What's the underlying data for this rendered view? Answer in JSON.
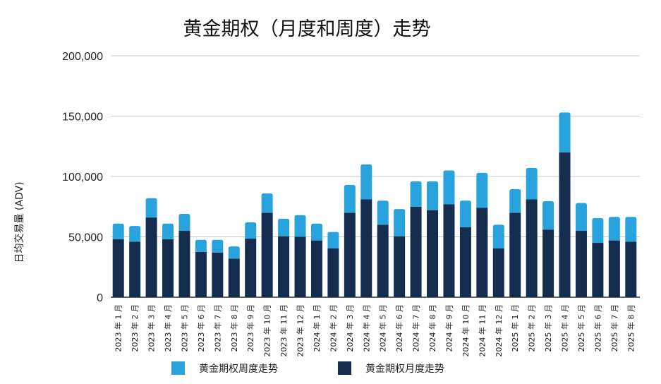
{
  "chart_data": {
    "type": "bar",
    "stacked": true,
    "title": "黄金期权（月度和周度）走势",
    "xlabel": "",
    "ylabel": "日均交易量 (ADV)",
    "ylim": [
      0,
      200000
    ],
    "yticks": [
      "0",
      "50,000",
      "100,000",
      "150,000",
      "200,000"
    ],
    "ytick_values": [
      0,
      50000,
      100000,
      150000,
      200000
    ],
    "grid": true,
    "legend": "bottom",
    "categories": [
      "2023 年 1 月",
      "2023 年 2 月",
      "2023 年 3 月",
      "2023 年 4 月",
      "2023 年 5 月",
      "2023 年 6 月",
      "2023 年 7 月",
      "2023 年 8 月",
      "2023 年 9 月",
      "2023 年 10 月",
      "2023 年 11 月",
      "2023 年 12 月",
      "2024 年 1 月",
      "2024 年 2 月",
      "2024 年 3 月",
      "2024 年 4 月",
      "2024 年 5 月",
      "2024 年 6 月",
      "2024 年 7 月",
      "2024 年 8 月",
      "2024 年 9 月",
      "2024 年 10 月",
      "2024 年 11 月",
      "2024 年 12 月",
      "2025 年 1 月",
      "2025 年 2 月",
      "2025 年 3 月",
      "2025 年 4 月",
      "2025 年 5 月",
      "2025 年 6 月",
      "2025 年 7 月",
      "2025 年 8 月"
    ],
    "series": [
      {
        "name": "黄金期权月度走势",
        "color": "#142C4E",
        "values": [
          48000,
          46000,
          66000,
          48000,
          55000,
          37500,
          37000,
          32000,
          48500,
          70000,
          50500,
          50000,
          47000,
          40500,
          70000,
          81000,
          60000,
          50500,
          75000,
          72000,
          77000,
          58000,
          74000,
          40500,
          70000,
          81000,
          56000,
          120000,
          55000,
          45000,
          47000,
          46000
        ]
      },
      {
        "name": "黄金期权周度走势",
        "color": "#29A3DD",
        "values": [
          13000,
          13000,
          16000,
          13000,
          14000,
          10000,
          10500,
          10000,
          13500,
          16000,
          14500,
          18000,
          14000,
          13500,
          23000,
          29000,
          20000,
          22500,
          21000,
          24000,
          28000,
          22000,
          29000,
          19500,
          19500,
          26000,
          23500,
          33000,
          23000,
          20500,
          19500,
          20500
        ]
      }
    ]
  }
}
